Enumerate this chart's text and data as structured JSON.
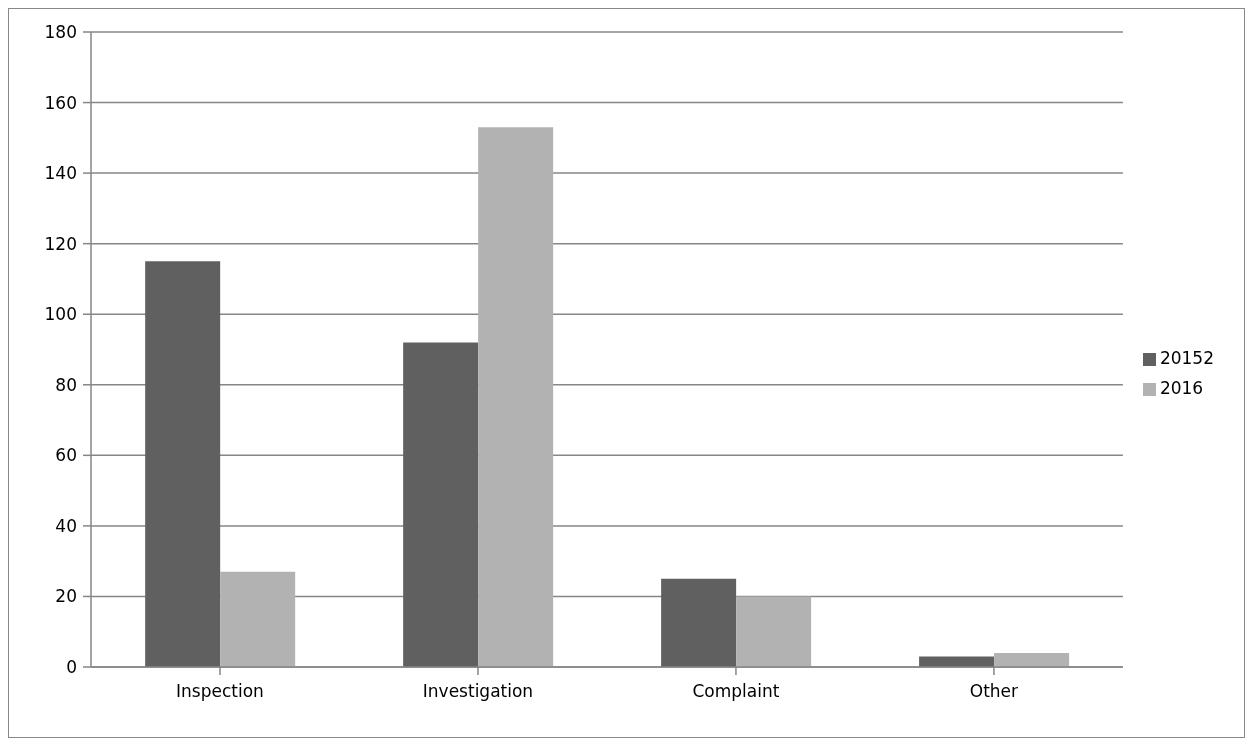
{
  "chart_data": {
    "type": "bar",
    "categories": [
      "Inspection",
      "Investigation",
      "Complaint",
      "Other"
    ],
    "series": [
      {
        "name": "20152",
        "color": "#606060",
        "values": [
          115,
          92,
          25,
          3
        ]
      },
      {
        "name": "2016",
        "color": "#b2b2b2",
        "values": [
          27,
          153,
          20,
          4
        ]
      }
    ],
    "ylim": [
      0,
      180
    ],
    "yticks": [
      0,
      20,
      40,
      60,
      80,
      100,
      120,
      140,
      160,
      180
    ],
    "grid": "y",
    "legend": "right"
  }
}
